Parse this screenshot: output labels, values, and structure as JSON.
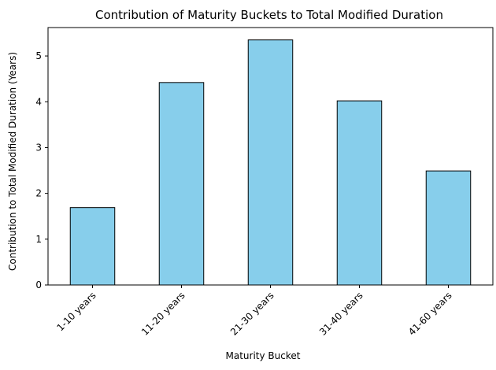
{
  "chart_data": {
    "type": "bar",
    "title": "Contribution of Maturity Buckets to Total Modified Duration",
    "xlabel": "Maturity Bucket",
    "ylabel": "Contribution to Total Modified Duration (Years)",
    "categories": [
      "1-10 years",
      "11-20 years",
      "21-30 years",
      "31-40 years",
      "41-60 years"
    ],
    "values": [
      1.69,
      4.42,
      5.35,
      4.02,
      2.49
    ],
    "ylim": [
      0,
      5.62
    ],
    "yticks": [
      0,
      1,
      2,
      3,
      4,
      5
    ],
    "grid": false,
    "bar_color": "#87ceeb",
    "edge_color": "#000000"
  }
}
